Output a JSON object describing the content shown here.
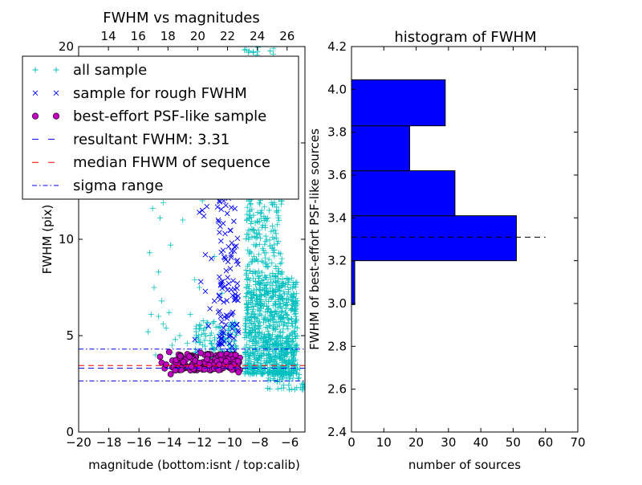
{
  "colors": {
    "all_sample": "#00bfbf",
    "rough_sample": "#0000ff",
    "psf_face": "#bf00bf",
    "resultant_line": "#0000ff",
    "median_line": "#ff0000",
    "sigma_line": "#0000ff",
    "hist_bar": "#0000ff",
    "hist_line": "#000000"
  },
  "chart_data": [
    {
      "type": "scatter",
      "title": "FWHM vs magnitudes",
      "xlabel": "magnitude (bottom:isnt / top:calib)",
      "ylabel": "FWHM (pix)",
      "xlim": [
        -20,
        -5
      ],
      "ylim": [
        0,
        20
      ],
      "x_ticks": [
        "−20",
        "−18",
        "−16",
        "−14",
        "−12",
        "−10",
        "−8",
        "−6"
      ],
      "y_ticks": [
        "0",
        "5",
        "10",
        "15",
        "20"
      ],
      "top_axis": {
        "xlim": [
          12,
          27.2
        ],
        "ticks": [
          "14",
          "16",
          "18",
          "20",
          "22",
          "24",
          "26"
        ]
      },
      "grid": false,
      "legend_position": "top-left",
      "legend": [
        {
          "label": "all sample",
          "marker": "+"
        },
        {
          "label": "sample for rough FWHM",
          "marker": "x"
        },
        {
          "label": "best-effort PSF-like sample",
          "marker": "o"
        },
        {
          "label": "resultant FWHM: 3.31",
          "line": "dashed"
        },
        {
          "label": "median FHWM of sequence",
          "line": "dashed"
        },
        {
          "label": "sigma range",
          "line": "dashdot"
        }
      ],
      "hlines": [
        {
          "series": "resultant FWHM",
          "y": 3.31,
          "style": "dashed"
        },
        {
          "series": "median FHWM of sequence",
          "y": 3.45,
          "style": "dashed"
        },
        {
          "series": "sigma range",
          "y": 4.3,
          "style": "dashdot"
        },
        {
          "series": "sigma range",
          "y": 2.65,
          "style": "dashdot"
        }
      ],
      "series": [
        {
          "name": "all sample",
          "marker": "+",
          "clusters": [
            {
              "x": [
                -9.0,
                -5.5
              ],
              "y": [
                3.0,
                8.0
              ],
              "n": 900
            },
            {
              "x": [
                -8.9,
                -6.5
              ],
              "y": [
                8.0,
                13.5
              ],
              "n": 230
            },
            {
              "x": [
                -9.3,
                -7.0
              ],
              "y": [
                13.5,
                20.0
              ],
              "n": 90
            },
            {
              "x": [
                -12.3,
                -9.5
              ],
              "y": [
                3.3,
                5.8
              ],
              "n": 160
            },
            {
              "x": [
                -7.5,
                -5.0
              ],
              "y": [
                2.2,
                3.6
              ],
              "n": 60
            }
          ],
          "points": [
            [
              -15.3,
              9.3
            ],
            [
              -15.2,
              6.1
            ],
            [
              -15.0,
              7.5
            ],
            [
              -14.9,
              4.0
            ],
            [
              -15.4,
              5.2
            ],
            [
              -14.7,
              8.3
            ],
            [
              -14.6,
              11.1
            ],
            [
              -14.5,
              6.8
            ],
            [
              -14.4,
              5.6
            ],
            [
              -14.2,
              5.4
            ],
            [
              -14.0,
              6.2
            ],
            [
              -13.9,
              9.7
            ],
            [
              -13.8,
              4.5
            ],
            [
              -13.6,
              4.8
            ],
            [
              -13.3,
              5.0
            ],
            [
              -13.1,
              11.0
            ],
            [
              -12.8,
              4.6
            ],
            [
              -14.4,
              11.9
            ],
            [
              -12.6,
              6.1
            ],
            [
              -15.1,
              11.6
            ],
            [
              -11.8,
              12.0
            ],
            [
              -12.3,
              7.9
            ],
            [
              -14.7,
              6.0
            ],
            [
              -13.9,
              4.1
            ],
            [
              -5.3,
              2.3
            ],
            [
              -5.2,
              2.5
            ],
            [
              -5.4,
              2.8
            ],
            [
              -10.5,
              7.2
            ],
            [
              -11.0,
              9.1
            ],
            [
              -12.0,
              7.5
            ]
          ]
        },
        {
          "name": "sample for rough FWHM",
          "marker": "x",
          "clusters": [
            {
              "x": [
                -10.8,
                -9.4
              ],
              "y": [
                3.6,
                17.5
              ],
              "n": 190
            }
          ],
          "points": [
            [
              -11.8,
              11.5
            ],
            [
              -11.5,
              11.7
            ],
            [
              -12.0,
              11.4
            ],
            [
              -11.6,
              7.3
            ],
            [
              -11.9,
              7.8
            ],
            [
              -11.3,
              6.4
            ],
            [
              -11.6,
              9.2
            ],
            [
              -12.3,
              4.8
            ],
            [
              -12.1,
              4.2
            ],
            [
              -11.0,
              6.8
            ],
            [
              -11.7,
              11.2
            ],
            [
              -11.2,
              9.0
            ],
            [
              -11.4,
              5.5
            ],
            [
              -10.9,
              13.0
            ],
            [
              -11.1,
              12.6
            ]
          ]
        },
        {
          "name": "best-effort PSF-like sample",
          "marker": "o",
          "clusters": [
            {
              "x": [
                -13.8,
                -9.3
              ],
              "y": [
                3.2,
                4.05
              ],
              "n": 150
            }
          ],
          "points": [
            [
              -14.5,
              3.6
            ],
            [
              -14.6,
              3.9
            ],
            [
              -14.3,
              3.3
            ],
            [
              -14.2,
              3.5
            ],
            [
              -13.9,
              3.0
            ],
            [
              -14.0,
              4.15
            ],
            [
              -13.6,
              3.2
            ],
            [
              -11.9,
              4.1
            ],
            [
              -9.6,
              4.0
            ],
            [
              -9.4,
              3.1
            ]
          ]
        }
      ]
    },
    {
      "type": "bar",
      "orientation": "horizontal",
      "title": "histogram of FWHM",
      "xlabel": "number of sources",
      "ylabel": "FWHM of best-effort PSF-like sources",
      "xlim": [
        0,
        70
      ],
      "ylim": [
        2.4,
        4.2
      ],
      "x_ticks": [
        "0",
        "10",
        "20",
        "30",
        "40",
        "50",
        "60",
        "70"
      ],
      "y_ticks": [
        "2.4",
        "2.6",
        "2.8",
        "3.0",
        "3.2",
        "3.4",
        "3.6",
        "3.8",
        "4.0",
        "4.2"
      ],
      "grid": false,
      "bins": [
        {
          "from": 2.995,
          "to": 3.2,
          "count": 1
        },
        {
          "from": 3.2,
          "to": 3.41,
          "count": 51
        },
        {
          "from": 3.41,
          "to": 3.62,
          "count": 32
        },
        {
          "from": 3.62,
          "to": 3.83,
          "count": 18
        },
        {
          "from": 3.83,
          "to": 4.045,
          "count": 29
        }
      ],
      "hline": {
        "y": 3.31,
        "style": "dashed",
        "x_range": [
          0,
          60
        ]
      }
    }
  ]
}
